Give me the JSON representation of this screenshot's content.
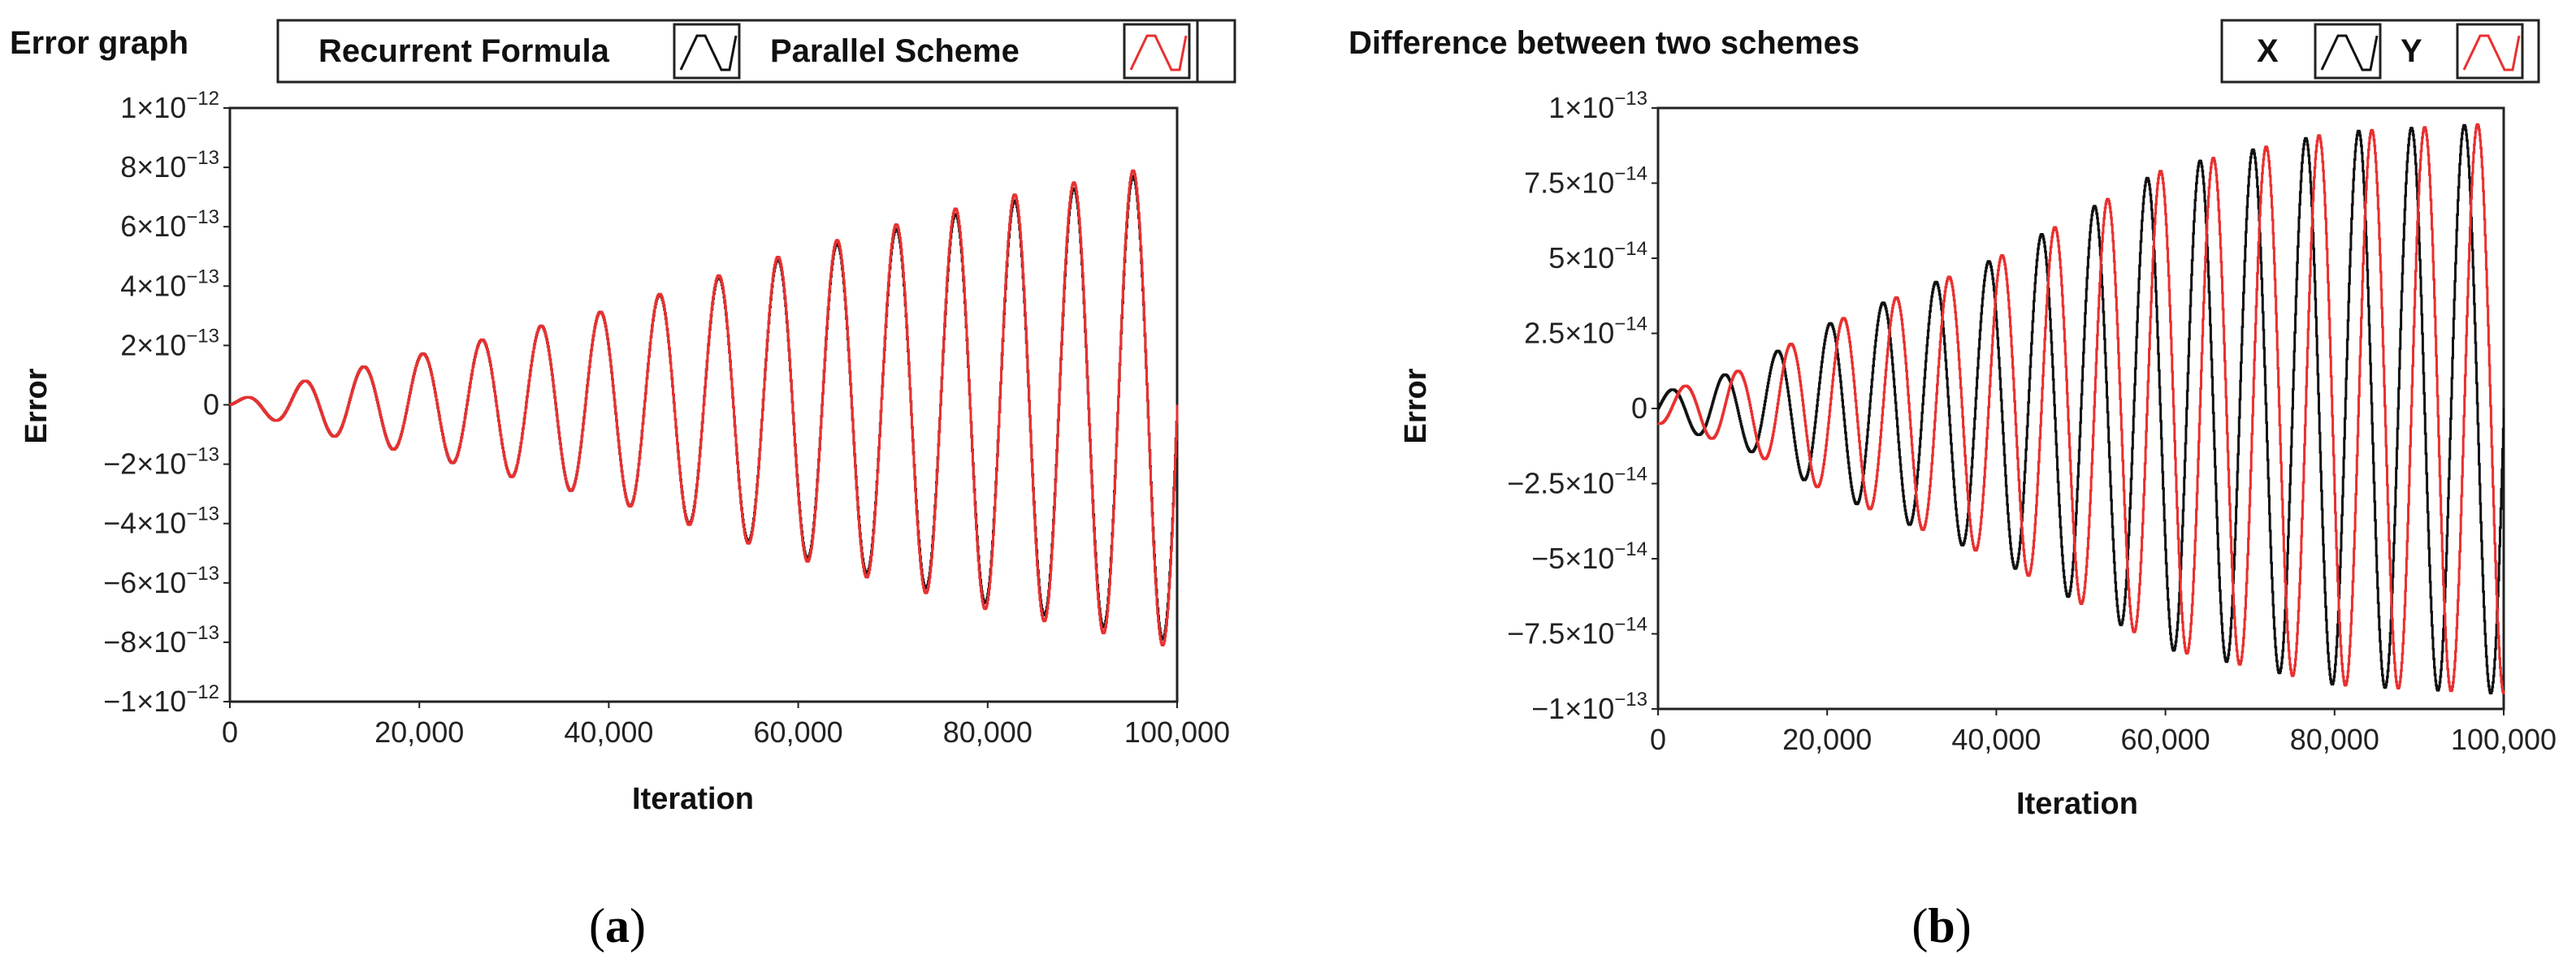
{
  "chart_data": [
    {
      "type": "line",
      "panel": "a",
      "title": "Error graph",
      "caption_open": "(",
      "caption_letter": "a",
      "caption_close": ")",
      "xlabel": "Iteration",
      "ylabel": "Error",
      "xlim": [
        0,
        100000
      ],
      "ylim": [
        -1e-12,
        1e-12
      ],
      "x_ticks": [
        {
          "value": 0,
          "label": "0"
        },
        {
          "value": 20000,
          "label": "20,000"
        },
        {
          "value": 40000,
          "label": "40,000"
        },
        {
          "value": 60000,
          "label": "60,000"
        },
        {
          "value": 80000,
          "label": "80,000"
        },
        {
          "value": 100000,
          "label": "100,000"
        }
      ],
      "y_ticks": [
        {
          "value": 1e-12,
          "base": "1×10",
          "exp": "−12"
        },
        {
          "value": 8e-13,
          "base": "8×10",
          "exp": "−13"
        },
        {
          "value": 6e-13,
          "base": "6×10",
          "exp": "−13"
        },
        {
          "value": 4e-13,
          "base": "4×10",
          "exp": "−13"
        },
        {
          "value": 2e-13,
          "base": "2×10",
          "exp": "−13"
        },
        {
          "value": 0,
          "base": "0",
          "exp": ""
        },
        {
          "value": -2e-13,
          "base": "−2×10",
          "exp": "−13"
        },
        {
          "value": -4e-13,
          "base": "−4×10",
          "exp": "−13"
        },
        {
          "value": -6e-13,
          "base": "−6×10",
          "exp": "−13"
        },
        {
          "value": -8e-13,
          "base": "−8×10",
          "exp": "−13"
        },
        {
          "value": -1e-12,
          "base": "−1×10",
          "exp": "−12"
        }
      ],
      "legend": [
        "Recurrent Formula",
        "Parallel Scheme"
      ],
      "series": [
        {
          "name": "Recurrent Formula",
          "color": "#111111",
          "model": "growing sinusoid",
          "period": 6250,
          "phase_offset": 0,
          "amplitude": {
            "x": [
              0,
              10000,
              20000,
              40000,
              60000,
              80000,
              100000
            ],
            "y": [
              1e-14,
              1e-13,
              1.7e-13,
              3.2e-13,
              5.1e-13,
              6.7e-13,
              8e-13
            ]
          }
        },
        {
          "name": "Parallel Scheme",
          "color": "#e83030",
          "model": "growing sinusoid",
          "period": 6250,
          "phase_offset": 0,
          "amplitude": {
            "x": [
              0,
              10000,
              20000,
              40000,
              60000,
              80000,
              100000
            ],
            "y": [
              1e-14,
              1e-13,
              1.7e-13,
              3.2e-13,
              5.2e-13,
              6.9e-13,
              8.2e-13
            ]
          }
        }
      ]
    },
    {
      "type": "line",
      "panel": "b",
      "title": "Difference between two schemes",
      "caption_open": "(",
      "caption_letter": "b",
      "caption_close": ")",
      "xlabel": "Iteration",
      "ylabel": "Error",
      "xlim": [
        0,
        100000
      ],
      "ylim": [
        -1e-13,
        1e-13
      ],
      "x_ticks": [
        {
          "value": 0,
          "label": "0"
        },
        {
          "value": 20000,
          "label": "20,000"
        },
        {
          "value": 40000,
          "label": "40,000"
        },
        {
          "value": 60000,
          "label": "60,000"
        },
        {
          "value": 80000,
          "label": "80,000"
        },
        {
          "value": 100000,
          "label": "100,000"
        }
      ],
      "y_ticks": [
        {
          "value": 1e-13,
          "base": "1×10",
          "exp": "−13"
        },
        {
          "value": 7.5e-14,
          "base": "7.5×10",
          "exp": "−14"
        },
        {
          "value": 5e-14,
          "base": "5×10",
          "exp": "−14"
        },
        {
          "value": 2.5e-14,
          "base": "2.5×10",
          "exp": "−14"
        },
        {
          "value": 0,
          "base": "0",
          "exp": ""
        },
        {
          "value": -2.5e-14,
          "base": "−2.5×10",
          "exp": "−14"
        },
        {
          "value": -5e-14,
          "base": "−5×10",
          "exp": "−14"
        },
        {
          "value": -7.5e-14,
          "base": "−7.5×10",
          "exp": "−14"
        },
        {
          "value": -1e-13,
          "base": "−1×10",
          "exp": "−13"
        }
      ],
      "legend": [
        "X",
        "Y"
      ],
      "series": [
        {
          "name": "X",
          "color": "#111111",
          "model": "growing sinusoid",
          "period": 6250,
          "phase_offset": 0,
          "amplitude": {
            "x": [
              0,
              10000,
              20000,
              40000,
              60000,
              80000,
              100000
            ],
            "y": [
              5e-15,
              1.3e-14,
              2.8e-14,
              5e-14,
              8e-14,
              9.2e-14,
              9.5e-14
            ]
          }
        },
        {
          "name": "Y",
          "color": "#e83030",
          "model": "growing sinusoid",
          "period": 6250,
          "phase_offset": 1.5708,
          "amplitude": {
            "x": [
              0,
              10000,
              20000,
              40000,
              60000,
              80000,
              100000
            ],
            "y": [
              5e-15,
              1.3e-14,
              2.8e-14,
              5e-14,
              8e-14,
              9.2e-14,
              9.5e-14
            ]
          }
        }
      ]
    }
  ]
}
